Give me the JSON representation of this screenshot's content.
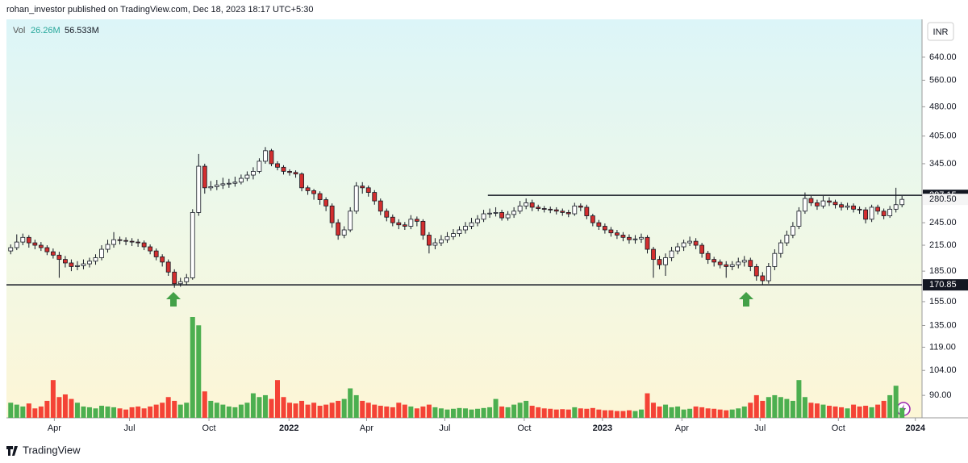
{
  "header": "rohan_investor published on TradingView.com, Dec 18, 2023 18:17 UTC+5:30",
  "footer": "TradingView",
  "chart_data": {
    "type": "candlestick",
    "log_scale": true,
    "currency": "INR",
    "volume_legend": {
      "name": "Vol",
      "last": "26.26M",
      "ma": "56.533M"
    },
    "up_color": "#ffffff",
    "down_color": "#d32f2f",
    "volume_up_color": "#4caf50",
    "volume_down_color": "#f44336",
    "ylim": [
      79,
      797
    ],
    "yticks": [
      {
        "value": 640,
        "label": "640.00"
      },
      {
        "value": 560,
        "label": "560.00"
      },
      {
        "value": 480,
        "label": "480.00"
      },
      {
        "value": 405,
        "label": "405.00"
      },
      {
        "value": 345,
        "label": "345.00"
      },
      {
        "value": 245,
        "label": "245.00"
      },
      {
        "value": 215,
        "label": "215.00"
      },
      {
        "value": 185,
        "label": "185.00"
      },
      {
        "value": 155,
        "label": "155.00"
      },
      {
        "value": 135,
        "label": "135.00"
      },
      {
        "value": 119,
        "label": "119.00"
      },
      {
        "value": 104,
        "label": "104.00"
      },
      {
        "value": 90,
        "label": "90.00"
      }
    ],
    "xlim": [
      -0.7,
      150.3
    ],
    "xticks": [
      {
        "value": 7.2,
        "label": "Apr"
      },
      {
        "value": 19.6,
        "label": "Jul"
      },
      {
        "value": 32.7,
        "label": "Oct"
      },
      {
        "value": 45.9,
        "label": "2022"
      },
      {
        "value": 58.7,
        "label": "Apr"
      },
      {
        "value": 71.6,
        "label": "Jul"
      },
      {
        "value": 84.7,
        "label": "Oct"
      },
      {
        "value": 97.6,
        "label": "2023"
      },
      {
        "value": 110.7,
        "label": "Apr"
      },
      {
        "value": 123.6,
        "label": "Jul"
      },
      {
        "value": 136.5,
        "label": "Oct"
      },
      {
        "value": 149.2,
        "label": "2024"
      }
    ],
    "levels": [
      {
        "value": 287.15,
        "x_start": 78.7
      },
      {
        "value": 170.85
      }
    ],
    "last_price": {
      "value": 280.5,
      "label": "280.50"
    },
    "open": [
      208,
      212,
      219,
      225,
      218,
      215,
      212,
      207,
      203,
      198,
      194,
      190,
      191,
      193,
      196,
      200,
      210,
      216,
      222,
      221,
      220,
      219,
      218,
      213,
      208,
      201,
      195,
      184,
      172,
      174,
      178,
      260,
      340,
      300,
      302,
      305,
      307,
      308,
      310,
      317,
      323,
      330,
      350,
      372,
      345,
      338,
      330,
      328,
      325,
      300,
      295,
      290,
      280,
      270,
      245,
      228,
      235,
      262,
      303,
      300,
      292,
      278,
      262,
      253,
      245,
      242,
      240,
      250,
      247,
      228,
      215,
      218,
      222,
      226,
      230,
      235,
      240,
      245,
      250,
      258,
      259,
      260,
      252,
      257,
      262,
      270,
      275,
      268,
      266,
      265,
      264,
      262,
      260,
      258,
      270,
      268,
      255,
      245,
      240,
      235,
      231,
      228,
      225,
      222,
      223,
      225,
      210,
      198,
      192,
      200,
      208,
      213,
      218,
      220,
      215,
      205,
      198,
      195,
      192,
      190,
      192,
      195,
      197,
      190,
      180,
      175,
      190,
      205,
      218,
      228,
      240,
      262,
      282,
      275,
      270,
      278,
      276,
      272,
      268,
      270,
      265,
      264,
      250,
      268,
      262,
      255,
      265,
      272
    ],
    "high": [
      216,
      229,
      230,
      228,
      222,
      219,
      215,
      211,
      207,
      202,
      198,
      196,
      198,
      200,
      204,
      215,
      222,
      232,
      226,
      225,
      224,
      223,
      221,
      216,
      211,
      204,
      198,
      187,
      178,
      182,
      265,
      365,
      345,
      312,
      314,
      318,
      316,
      320,
      324,
      330,
      338,
      356,
      380,
      376,
      350,
      342,
      334,
      332,
      328,
      304,
      298,
      294,
      284,
      274,
      250,
      240,
      268,
      310,
      310,
      304,
      296,
      282,
      266,
      257,
      250,
      246,
      256,
      254,
      250,
      232,
      224,
      228,
      232,
      236,
      240,
      246,
      252,
      256,
      264,
      266,
      268,
      264,
      262,
      268,
      278,
      282,
      280,
      272,
      270,
      269,
      268,
      266,
      264,
      275,
      274,
      272,
      258,
      249,
      244,
      239,
      235,
      232,
      229,
      228,
      230,
      228,
      213,
      202,
      205,
      213,
      218,
      222,
      226,
      224,
      218,
      208,
      201,
      198,
      196,
      196,
      200,
      202,
      200,
      193,
      184,
      194,
      210,
      222,
      234,
      246,
      268,
      292,
      286,
      280,
      286,
      284,
      280,
      276,
      275,
      274,
      269,
      268,
      272,
      272,
      266,
      270,
      300,
      286
    ],
    "low": [
      204,
      209,
      215,
      212,
      210,
      208,
      203,
      199,
      178,
      189,
      185,
      186,
      187,
      189,
      192,
      197,
      206,
      212,
      216,
      215,
      214,
      213,
      209,
      204,
      197,
      190,
      180,
      168,
      169,
      171,
      176,
      255,
      290,
      295,
      296,
      298,
      300,
      302,
      306,
      312,
      315,
      326,
      345,
      340,
      332,
      324,
      322,
      318,
      294,
      288,
      280,
      272,
      262,
      238,
      222,
      224,
      232,
      258,
      290,
      285,
      272,
      256,
      247,
      240,
      236,
      235,
      236,
      240,
      222,
      205,
      210,
      214,
      218,
      222,
      226,
      230,
      236,
      240,
      246,
      252,
      254,
      248,
      248,
      252,
      258,
      265,
      262,
      262,
      260,
      259,
      257,
      255,
      253,
      255,
      262,
      250,
      240,
      235,
      230,
      226,
      223,
      220,
      217,
      217,
      218,
      205,
      178,
      187,
      180,
      196,
      204,
      208,
      214,
      210,
      200,
      193,
      190,
      188,
      178,
      186,
      188,
      190,
      185,
      175,
      171,
      172,
      186,
      200,
      214,
      224,
      236,
      258,
      270,
      264,
      266,
      270,
      266,
      263,
      264,
      260,
      258,
      244,
      246,
      257,
      250,
      252,
      260,
      268
    ],
    "close": [
      212,
      219,
      225,
      218,
      215,
      212,
      207,
      203,
      198,
      194,
      190,
      191,
      193,
      196,
      200,
      210,
      216,
      222,
      221,
      220,
      219,
      218,
      213,
      208,
      201,
      195,
      184,
      172,
      174,
      178,
      260,
      340,
      300,
      302,
      305,
      307,
      308,
      310,
      317,
      323,
      330,
      350,
      372,
      345,
      338,
      330,
      328,
      325,
      300,
      295,
      290,
      280,
      270,
      245,
      228,
      235,
      262,
      303,
      300,
      292,
      278,
      262,
      253,
      245,
      242,
      240,
      250,
      247,
      228,
      215,
      218,
      222,
      226,
      230,
      235,
      240,
      245,
      250,
      258,
      259,
      260,
      252,
      257,
      262,
      270,
      275,
      268,
      266,
      265,
      264,
      262,
      260,
      258,
      270,
      268,
      255,
      245,
      240,
      235,
      231,
      228,
      225,
      222,
      223,
      225,
      210,
      198,
      192,
      200,
      208,
      213,
      218,
      220,
      215,
      205,
      198,
      195,
      192,
      190,
      192,
      195,
      197,
      190,
      180,
      175,
      190,
      205,
      218,
      228,
      240,
      262,
      282,
      275,
      270,
      278,
      276,
      272,
      268,
      270,
      265,
      264,
      250,
      268,
      262,
      255,
      265,
      272,
      280.5
    ],
    "volume": [
      40,
      35,
      30,
      38,
      25,
      30,
      45,
      100,
      55,
      62,
      50,
      40,
      30,
      28,
      25,
      32,
      30,
      28,
      25,
      22,
      28,
      30,
      25,
      30,
      35,
      40,
      55,
      45,
      35,
      40,
      267,
      245,
      70,
      45,
      40,
      35,
      30,
      28,
      35,
      40,
      65,
      55,
      60,
      50,
      100,
      55,
      40,
      38,
      45,
      35,
      40,
      32,
      35,
      40,
      45,
      50,
      78,
      60,
      45,
      40,
      35,
      32,
      30,
      28,
      40,
      35,
      30,
      25,
      30,
      35,
      28,
      25,
      22,
      24,
      26,
      25,
      22,
      24,
      26,
      28,
      50,
      30,
      28,
      35,
      40,
      45,
      32,
      28,
      25,
      24,
      22,
      23,
      22,
      28,
      25,
      24,
      26,
      22,
      20,
      20,
      18,
      18,
      20,
      18,
      22,
      65,
      40,
      30,
      35,
      28,
      30,
      22,
      24,
      30,
      28,
      25,
      24,
      22,
      20,
      22,
      25,
      30,
      40,
      60,
      45,
      55,
      60,
      55,
      50,
      45,
      100,
      55,
      40,
      38,
      35,
      32,
      30,
      28,
      25,
      35,
      30,
      32,
      28,
      35,
      45,
      60,
      85,
      26.26
    ]
  }
}
